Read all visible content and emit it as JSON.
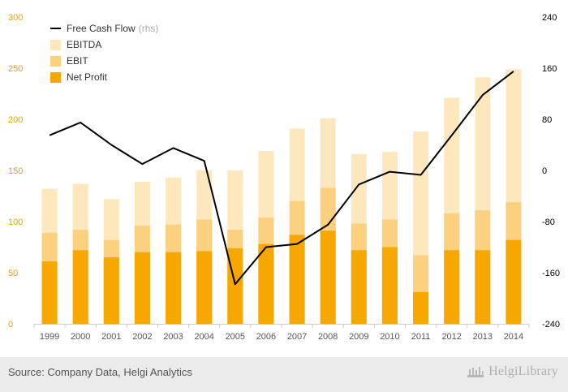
{
  "chart_data": {
    "type": "bar",
    "categories": [
      "1999",
      "2000",
      "2001",
      "2002",
      "2003",
      "2004",
      "2005",
      "2006",
      "2007",
      "2008",
      "2009",
      "2010",
      "2011",
      "2012",
      "2013",
      "2014"
    ],
    "series": [
      {
        "name": "EBITDA",
        "kind": "bar",
        "axis": "left",
        "color": "#fde8bd",
        "values": [
          132,
          137,
          122,
          139,
          143,
          150,
          150,
          169,
          191,
          201,
          166,
          168,
          188,
          221,
          241,
          249
        ]
      },
      {
        "name": "EBIT",
        "kind": "bar",
        "axis": "left",
        "color": "#fbd07e",
        "values": [
          89,
          92,
          82,
          96,
          97,
          102,
          92,
          104,
          120,
          133,
          98,
          102,
          67,
          108,
          111,
          119
        ]
      },
      {
        "name": "Net Profit",
        "kind": "bar",
        "axis": "left",
        "color": "#f6a800",
        "values": [
          61,
          72,
          65,
          70,
          70,
          71,
          74,
          78,
          87,
          91,
          72,
          75,
          31,
          72,
          72,
          82
        ]
      },
      {
        "name": "Free Cash Flow",
        "kind": "line",
        "axis": "right",
        "color": "#000000",
        "values": [
          55,
          75,
          40,
          10,
          35,
          15,
          -178,
          -120,
          -115,
          -85,
          -22,
          -2,
          -7,
          55,
          118,
          155
        ]
      }
    ],
    "legend": [
      {
        "label": "Free Cash Flow",
        "suffix": "(rhs)",
        "marker": "line",
        "color": "#000000"
      },
      {
        "label": "EBITDA",
        "suffix": "",
        "marker": "square",
        "color": "#fde8bd"
      },
      {
        "label": "EBIT",
        "suffix": "",
        "marker": "square",
        "color": "#fbd07e"
      },
      {
        "label": "Net Profit",
        "suffix": "",
        "marker": "square",
        "color": "#f6a800"
      }
    ],
    "legend_position": "top-left",
    "y_left": {
      "min": 0,
      "max": 300,
      "ticks": [
        0,
        50,
        100,
        150,
        200,
        250,
        300
      ],
      "color": "#e8a000"
    },
    "y_right": {
      "min": -240,
      "max": 240,
      "ticks": [
        -240,
        -160,
        -80,
        0,
        80,
        160,
        240
      ],
      "color": "#000000"
    },
    "grid": false,
    "title": "",
    "xlabel": "",
    "ylabel": ""
  },
  "footer": {
    "source": "Source: Company Data, Helgi Analytics",
    "brand": "HelgiLibrary"
  }
}
